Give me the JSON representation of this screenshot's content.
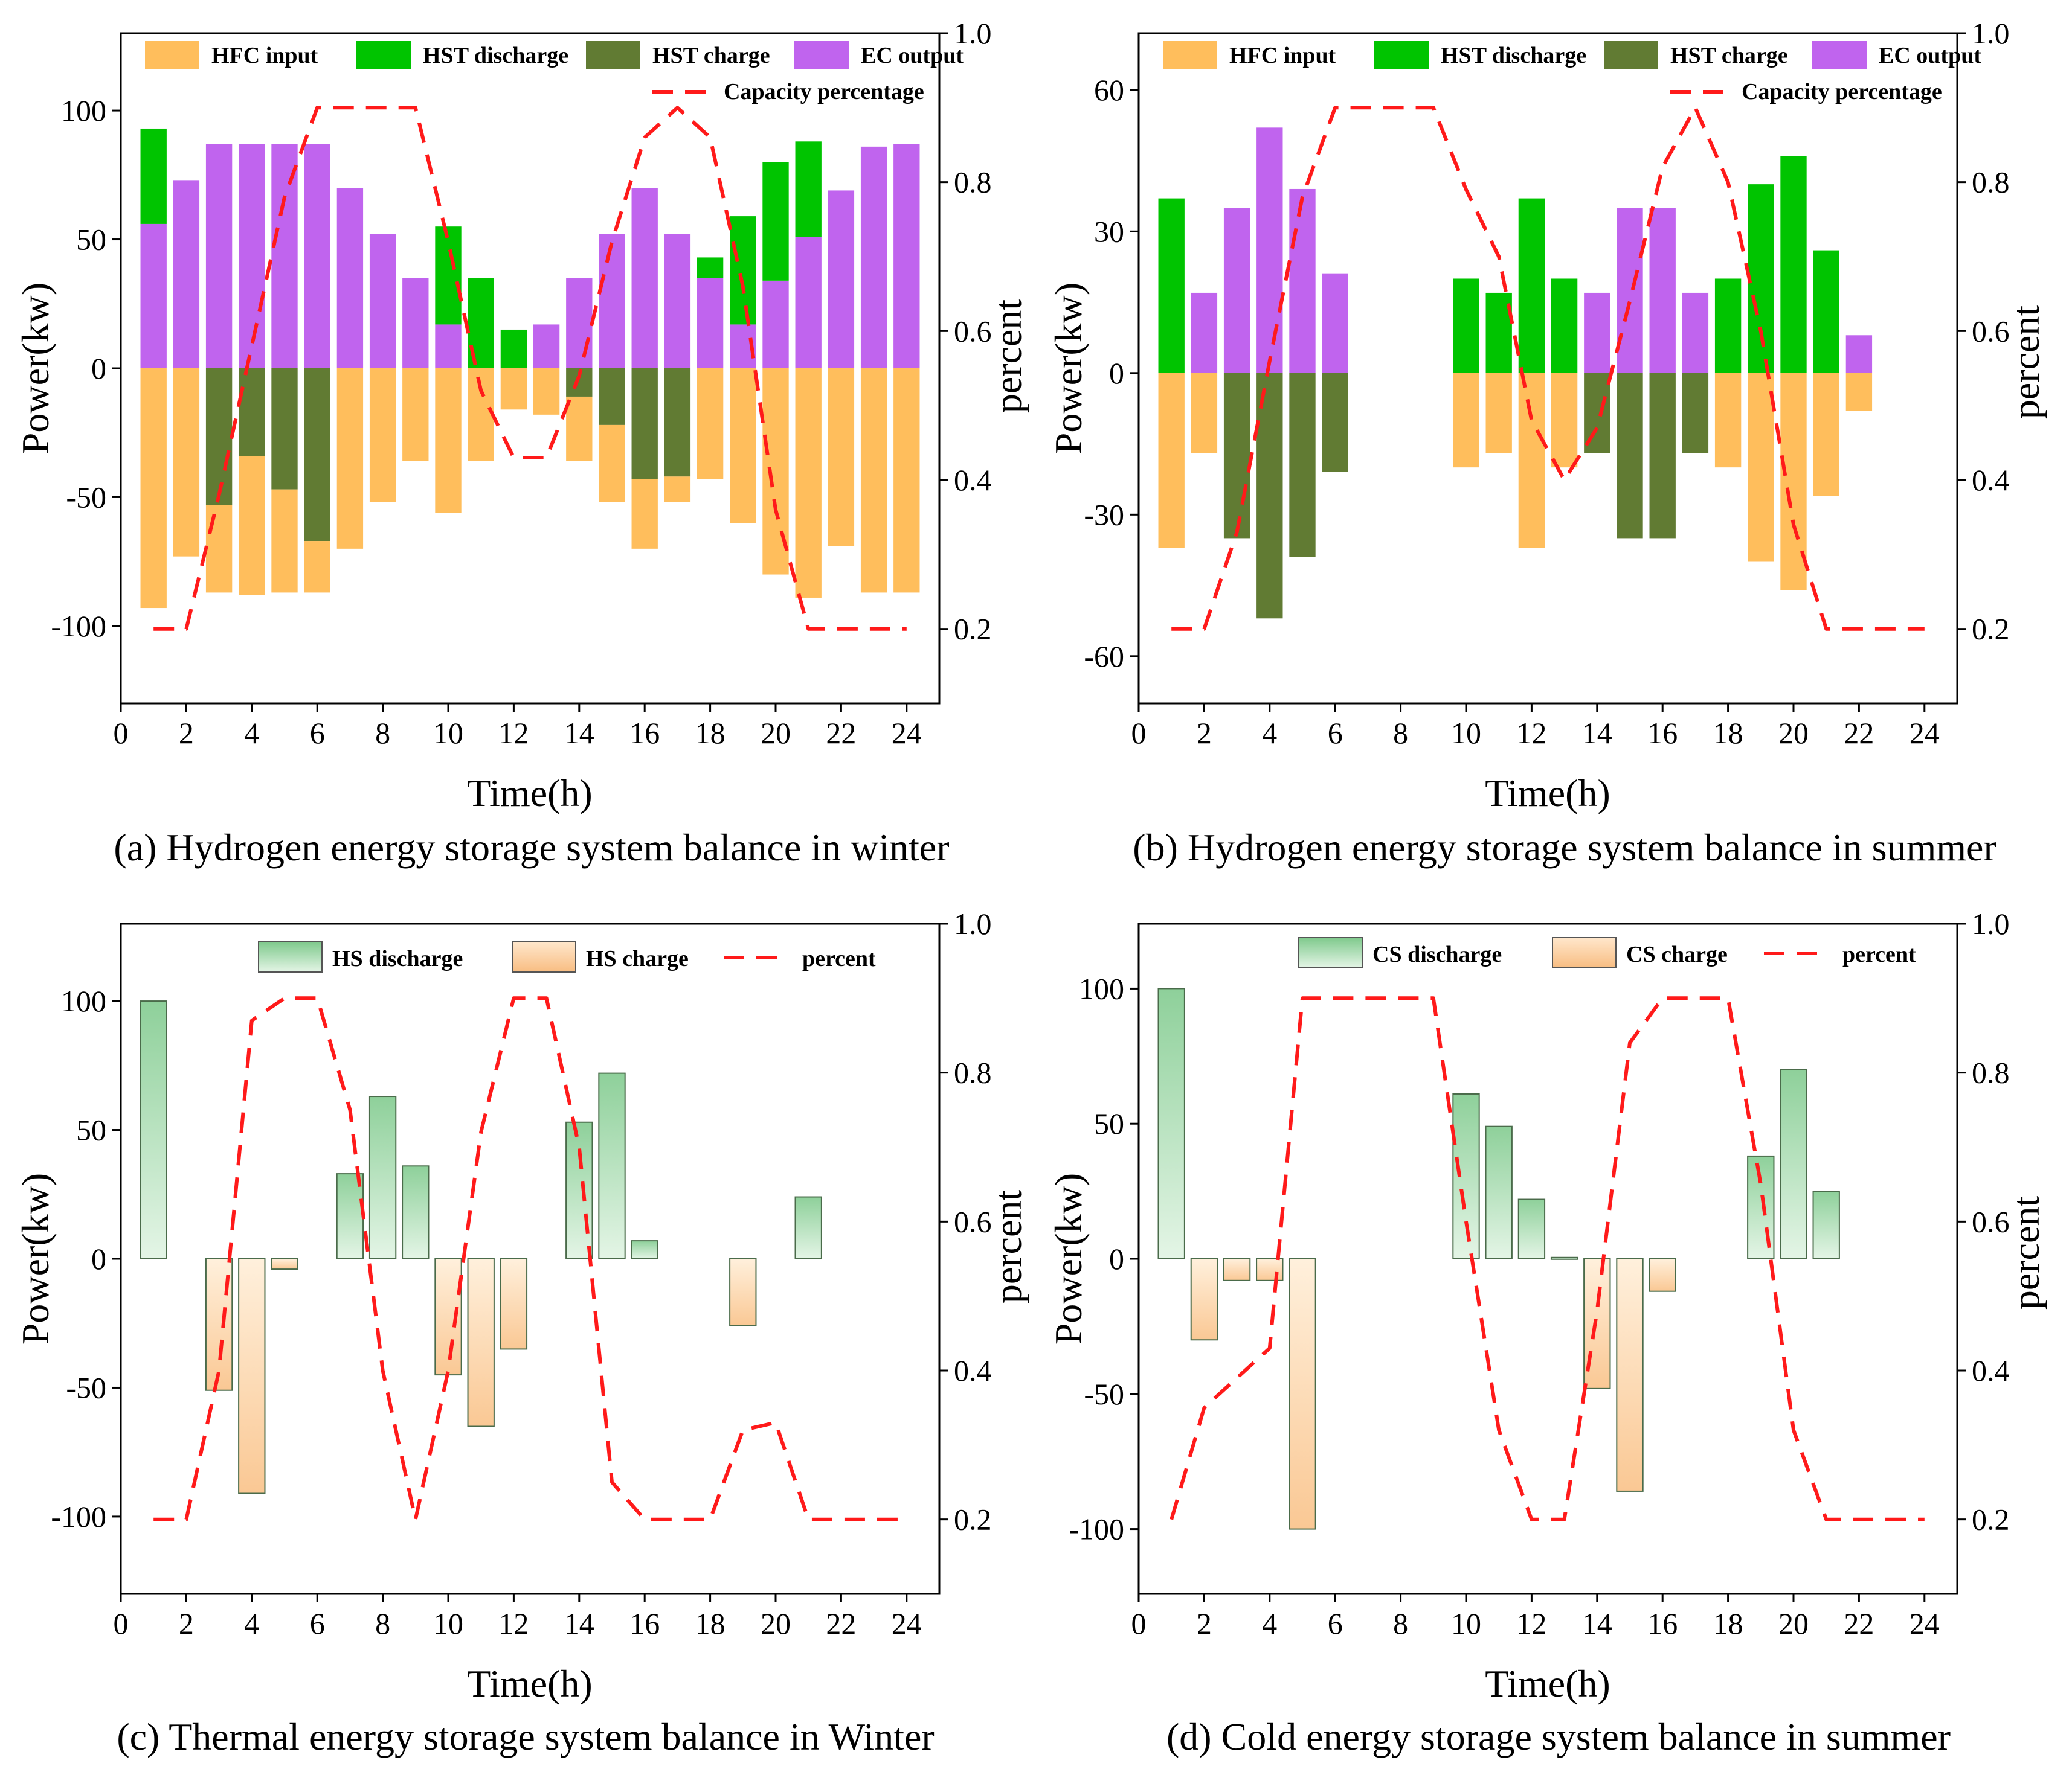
{
  "chart_data": [
    {
      "id": "a",
      "type": "bar",
      "caption": "(a) Hydrogen energy storage system balance in winter",
      "xlabel": "Time(h)",
      "ylabel": "Power(kw)",
      "y2label": "percent",
      "xlim": [
        0,
        25
      ],
      "ylim": [
        -130,
        130
      ],
      "y2lim": [
        0.1,
        1.0
      ],
      "xticks": [
        0,
        2,
        4,
        6,
        8,
        10,
        12,
        14,
        16,
        18,
        20,
        22,
        24
      ],
      "yticks": [
        -100,
        -50,
        0,
        50,
        100
      ],
      "y2ticks": [
        0.2,
        0.4,
        0.6,
        0.8,
        1.0
      ],
      "legend_position": "top",
      "hours": [
        1,
        2,
        3,
        4,
        5,
        6,
        7,
        8,
        9,
        10,
        11,
        12,
        13,
        14,
        15,
        16,
        17,
        18,
        19,
        20,
        21,
        22,
        23,
        24
      ],
      "series": [
        {
          "name": "HFC input",
          "color": "#FFBE5C",
          "base": "stack_neg",
          "values": [
            -93,
            -73,
            -34,
            -54,
            -40,
            -20,
            -70,
            -52,
            -36,
            -56,
            -36,
            -16,
            -18,
            -25,
            -30,
            -27,
            -10,
            -43,
            -60,
            -80,
            -89,
            -69,
            -87,
            -87
          ]
        },
        {
          "name": "HST discharge",
          "color": "#00C400",
          "base": "stack_pos",
          "values": [
            37,
            0,
            0,
            0,
            0,
            0,
            0,
            0,
            0,
            38,
            35,
            15,
            0,
            0,
            0,
            0,
            0,
            8,
            42,
            46,
            37,
            0,
            0,
            0
          ]
        },
        {
          "name": "HST charge",
          "color": "#617B33",
          "base": "stack_neg",
          "values": [
            0,
            0,
            -53,
            -34,
            -47,
            -67,
            0,
            0,
            0,
            0,
            0,
            0,
            0,
            -11,
            -22,
            -43,
            -42,
            0,
            0,
            0,
            0,
            0,
            0,
            0
          ]
        },
        {
          "name": "EC output",
          "color": "#C064EE",
          "base": "stack_pos",
          "values": [
            56,
            73,
            87,
            87,
            87,
            87,
            70,
            52,
            35,
            17,
            0,
            0,
            17,
            35,
            52,
            70,
            52,
            35,
            17,
            34,
            51,
            69,
            86,
            87
          ]
        }
      ],
      "line": {
        "name": "Capacity percentage",
        "color": "#FF1A1A",
        "x": [
          1,
          2,
          3,
          4,
          5,
          6,
          7,
          8,
          9,
          10,
          11,
          12,
          13,
          14,
          15,
          16,
          17,
          18,
          19,
          20,
          21,
          22,
          23,
          24
        ],
        "values": [
          0.2,
          0.2,
          0.38,
          0.58,
          0.78,
          0.9,
          0.9,
          0.9,
          0.9,
          0.72,
          0.52,
          0.43,
          0.43,
          0.54,
          0.72,
          0.86,
          0.9,
          0.86,
          0.66,
          0.36,
          0.2,
          0.2,
          0.2,
          0.2
        ]
      }
    },
    {
      "id": "b",
      "type": "bar",
      "caption": "(b) Hydrogen energy storage system balance in summer",
      "xlabel": "Time(h)",
      "ylabel": "Power(kw)",
      "y2label": "percent",
      "xlim": [
        0,
        25
      ],
      "ylim": [
        -70,
        72
      ],
      "y2lim": [
        0.1,
        1.0
      ],
      "xticks": [
        0,
        2,
        4,
        6,
        8,
        10,
        12,
        14,
        16,
        18,
        20,
        22,
        24
      ],
      "yticks": [
        -60,
        -30,
        0,
        30,
        60
      ],
      "y2ticks": [
        0.2,
        0.4,
        0.6,
        0.8,
        1.0
      ],
      "legend_position": "top",
      "hours": [
        1,
        2,
        3,
        4,
        5,
        6,
        7,
        8,
        9,
        10,
        11,
        12,
        13,
        14,
        15,
        16,
        17,
        18,
        19,
        20,
        21,
        22,
        23,
        24
      ],
      "series": [
        {
          "name": "HFC input",
          "color": "#FFBE5C",
          "base": "stack_neg",
          "values": [
            -37,
            -17,
            0,
            0,
            0,
            0,
            0,
            0,
            0,
            -20,
            -17,
            -37,
            -20,
            0,
            0,
            0,
            0,
            -20,
            -40,
            -46,
            -26,
            -8,
            0,
            0
          ]
        },
        {
          "name": "HST discharge",
          "color": "#00C400",
          "base": "stack_pos",
          "values": [
            37,
            0,
            0,
            0,
            0,
            0,
            0,
            0,
            0,
            20,
            17,
            37,
            20,
            0,
            0,
            0,
            0,
            20,
            40,
            46,
            26,
            0,
            0,
            0
          ]
        },
        {
          "name": "HST charge",
          "color": "#617B33",
          "base": "stack_neg",
          "values": [
            0,
            0,
            -35,
            -52,
            -39,
            -21,
            0,
            0,
            0,
            0,
            0,
            0,
            0,
            -17,
            -35,
            -35,
            -17,
            0,
            0,
            0,
            0,
            0,
            0,
            0
          ]
        },
        {
          "name": "EC output",
          "color": "#C064EE",
          "base": "stack_pos",
          "values": [
            0,
            17,
            35,
            52,
            39,
            21,
            0,
            0,
            0,
            0,
            0,
            0,
            0,
            17,
            35,
            35,
            17,
            0,
            0,
            0,
            0,
            8,
            0,
            0
          ]
        }
      ],
      "line": {
        "name": "Capacity percentage",
        "color": "#FF1A1A",
        "x": [
          1,
          2,
          3,
          4,
          5,
          6,
          7,
          8,
          9,
          10,
          11,
          12,
          13,
          14,
          15,
          16,
          17,
          18,
          19,
          20,
          21,
          22,
          23,
          24
        ],
        "values": [
          0.2,
          0.2,
          0.33,
          0.56,
          0.78,
          0.9,
          0.9,
          0.9,
          0.9,
          0.79,
          0.7,
          0.48,
          0.4,
          0.47,
          0.64,
          0.82,
          0.9,
          0.8,
          0.6,
          0.34,
          0.2,
          0.2,
          0.2,
          0.2
        ]
      }
    },
    {
      "id": "c",
      "type": "bar",
      "caption": "(c) Thermal energy storage system balance in Winter",
      "xlabel": "Time(h)",
      "ylabel": "Power(kw)",
      "y2label": "percent",
      "xlim": [
        0,
        25
      ],
      "ylim": [
        -130,
        130
      ],
      "y2lim": [
        0.1,
        1.0
      ],
      "xticks": [
        0,
        2,
        4,
        6,
        8,
        10,
        12,
        14,
        16,
        18,
        20,
        22,
        24
      ],
      "yticks": [
        -100,
        -50,
        0,
        50,
        100
      ],
      "y2ticks": [
        0.2,
        0.4,
        0.6,
        0.8,
        1.0
      ],
      "legend_position": "top-right",
      "hours": [
        1,
        2,
        3,
        4,
        5,
        6,
        7,
        8,
        9,
        10,
        11,
        12,
        13,
        14,
        15,
        16,
        17,
        18,
        19,
        20,
        21,
        22,
        23,
        24
      ],
      "series": [
        {
          "name": "HS discharge",
          "color": "#4BAA57",
          "gradient": true,
          "values": [
            100,
            0,
            0,
            0,
            0,
            0,
            33,
            63,
            36,
            0,
            0,
            0,
            0,
            53,
            72,
            7,
            0,
            0,
            0,
            0,
            24,
            0,
            0,
            0
          ]
        },
        {
          "name": "HS charge",
          "color": "#F5A85A",
          "gradient": true,
          "values": [
            0,
            0,
            -51,
            -91,
            -4,
            0,
            0,
            0,
            0,
            -45,
            -65,
            -35,
            0,
            0,
            0,
            0,
            0,
            0,
            -26,
            0,
            0,
            0,
            0,
            0
          ]
        }
      ],
      "line": {
        "name": "percent",
        "color": "#FF1A1A",
        "x": [
          1,
          2,
          3,
          4,
          5,
          6,
          7,
          8,
          9,
          10,
          11,
          12,
          13,
          14,
          15,
          16,
          17,
          18,
          19,
          20,
          21,
          22,
          23,
          24
        ],
        "values": [
          0.2,
          0.2,
          0.4,
          0.87,
          0.9,
          0.9,
          0.75,
          0.4,
          0.2,
          0.4,
          0.72,
          0.9,
          0.9,
          0.7,
          0.25,
          0.2,
          0.2,
          0.2,
          0.32,
          0.33,
          0.2,
          0.2,
          0.2,
          0.2
        ]
      }
    },
    {
      "id": "d",
      "type": "bar",
      "caption": "(d) Cold energy storage system balance in summer",
      "xlabel": "Time(h)",
      "ylabel": "Power(kw)",
      "y2label": "percent",
      "xlim": [
        0,
        25
      ],
      "ylim": [
        -124,
        124
      ],
      "y2lim": [
        0.1,
        1.0
      ],
      "xticks": [
        0,
        2,
        4,
        6,
        8,
        10,
        12,
        14,
        16,
        18,
        20,
        22,
        24
      ],
      "yticks": [
        -100,
        -50,
        0,
        50,
        100
      ],
      "y2ticks": [
        0.2,
        0.4,
        0.6,
        0.8,
        1.0
      ],
      "legend_position": "top-right",
      "hours": [
        1,
        2,
        3,
        4,
        5,
        6,
        7,
        8,
        9,
        10,
        11,
        12,
        13,
        14,
        15,
        16,
        17,
        18,
        19,
        20,
        21,
        22,
        23,
        24
      ],
      "series": [
        {
          "name": "CS discharge",
          "color": "#4BAA57",
          "gradient": true,
          "values": [
            100,
            0,
            0,
            0,
            0,
            0,
            0,
            0,
            0,
            61,
            49,
            22,
            0.5,
            0,
            0,
            0,
            0,
            0,
            38,
            70,
            25,
            0,
            0,
            0
          ]
        },
        {
          "name": "CS charge",
          "color": "#F5A85A",
          "gradient": true,
          "values": [
            0,
            -30,
            -8,
            -8,
            -100,
            0,
            0,
            0,
            0,
            0,
            0,
            0,
            0,
            -48,
            -86,
            -12,
            0,
            0,
            0,
            0,
            0,
            0,
            0,
            0
          ]
        }
      ],
      "line": {
        "name": "percent",
        "color": "#FF1A1A",
        "x": [
          1,
          2,
          3,
          4,
          5,
          6,
          7,
          8,
          9,
          10,
          11,
          12,
          13,
          14,
          15,
          16,
          17,
          18,
          19,
          20,
          21,
          22,
          23,
          24
        ],
        "values": [
          0.2,
          0.35,
          0.39,
          0.43,
          0.9,
          0.9,
          0.9,
          0.9,
          0.9,
          0.6,
          0.32,
          0.2,
          0.2,
          0.48,
          0.84,
          0.9,
          0.9,
          0.9,
          0.65,
          0.32,
          0.2,
          0.2,
          0.2,
          0.2
        ]
      }
    }
  ]
}
